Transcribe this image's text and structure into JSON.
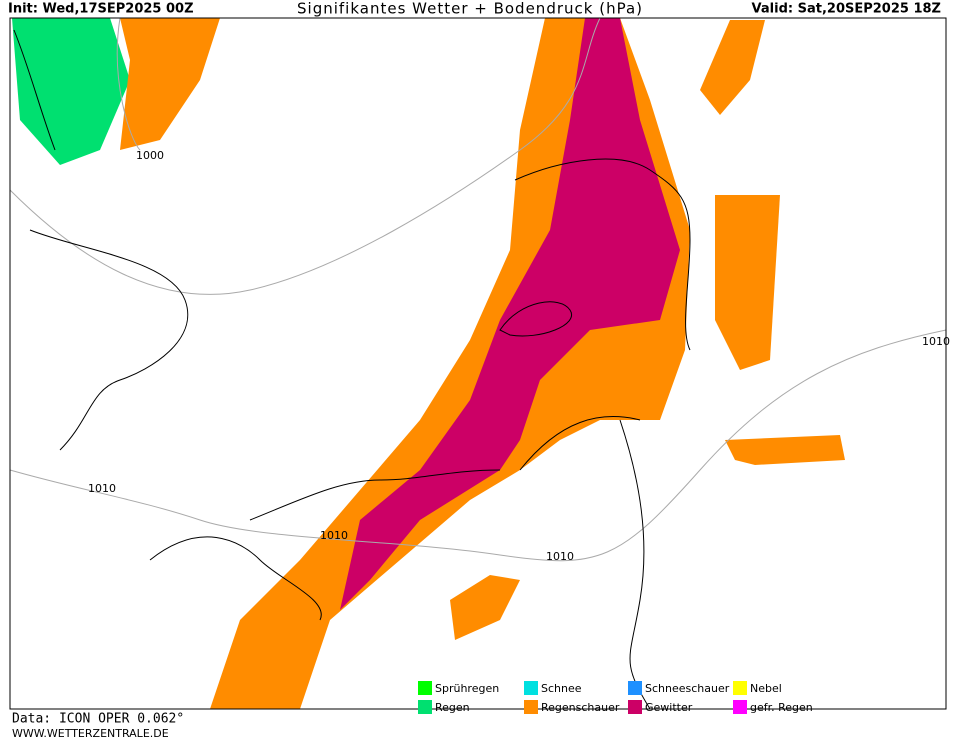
{
  "header": {
    "init": "Init: Wed,17SEP2025 00Z",
    "title": "Signifikantes Wetter +  Bodendruck (hPa)",
    "valid": "Valid: Sat,20SEP2025 18Z"
  },
  "isobar_labels": [
    "1000",
    "1010",
    "1010",
    "1010",
    "1010"
  ],
  "legend": [
    {
      "label": "Sprühregen",
      "color": "#00ff00"
    },
    {
      "label": "Regen",
      "color": "#00e070"
    },
    {
      "label": "Schnee",
      "color": "#00e0e0"
    },
    {
      "label": "Regenschauer",
      "color": "#ff8c00"
    },
    {
      "label": "Schneeschauer",
      "color": "#1e90ff"
    },
    {
      "label": "Gewitter",
      "color": "#cc0066"
    },
    {
      "label": "Nebel",
      "color": "#ffff00"
    },
    {
      "label": "gefr. Regen",
      "color": "#ff00ff"
    }
  ],
  "footer": {
    "data": "Data: ICON OPER 0.062°",
    "site": "WWW.WETTERZENTRALE.DE"
  }
}
